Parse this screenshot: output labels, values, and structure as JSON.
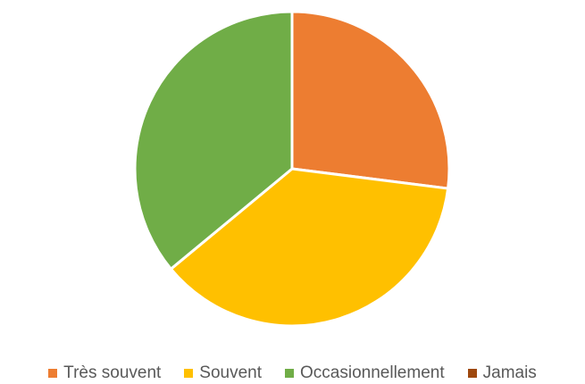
{
  "chart_data": {
    "type": "pie",
    "title": "",
    "categories": [
      "Très souvent",
      "Souvent",
      "Occasionnellement",
      "Jamais"
    ],
    "values": [
      27,
      37,
      36,
      0
    ],
    "colors": [
      "#ED7D31",
      "#FFC000",
      "#70AD47",
      "#9E480E"
    ],
    "legend_position": "bottom",
    "start_angle": "12 o'clock",
    "direction": "clockwise"
  }
}
